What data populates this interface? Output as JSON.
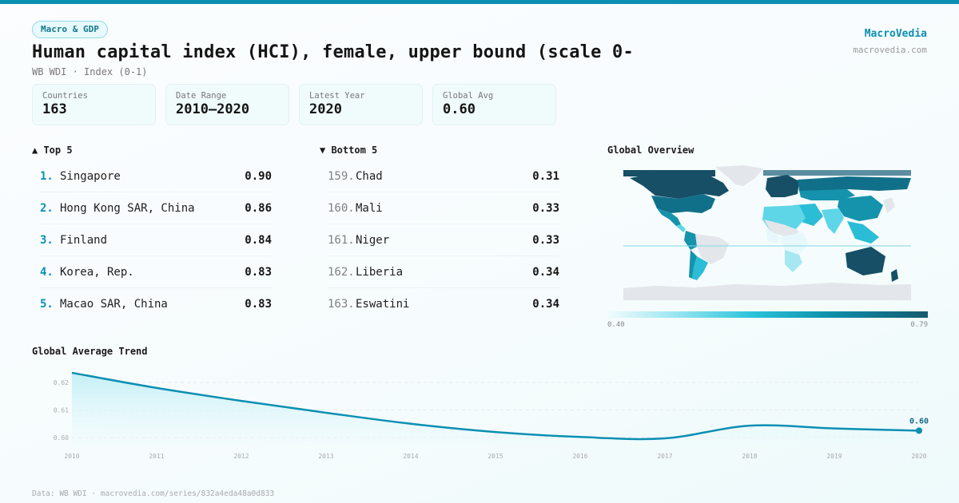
{
  "header": {
    "category_pill": "Macro & GDP",
    "title": "Human capital index (HCI), female, upper bound (scale 0-",
    "subtitle": "WB WDI · Index (0-1)",
    "brand_name": "MacroVedia",
    "brand_url": "macrovedia.com"
  },
  "stats": [
    {
      "label": "Countries",
      "value": "163"
    },
    {
      "label": "Date Range",
      "value": "2010–2020"
    },
    {
      "label": "Latest Year",
      "value": "2020"
    },
    {
      "label": "Global Avg",
      "value": "0.60"
    }
  ],
  "top5": {
    "title": "▲ Top 5",
    "items": [
      {
        "rank": "1.",
        "name": "Singapore",
        "value": "0.90"
      },
      {
        "rank": "2.",
        "name": "Hong Kong SAR, China",
        "value": "0.86"
      },
      {
        "rank": "3.",
        "name": "Finland",
        "value": "0.84"
      },
      {
        "rank": "4.",
        "name": "Korea, Rep.",
        "value": "0.83"
      },
      {
        "rank": "5.",
        "name": "Macao SAR, China",
        "value": "0.83"
      }
    ]
  },
  "bottom5": {
    "title": "▼ Bottom 5",
    "items": [
      {
        "rank": "159.",
        "name": "Chad",
        "value": "0.31"
      },
      {
        "rank": "160.",
        "name": "Mali",
        "value": "0.33"
      },
      {
        "rank": "161.",
        "name": "Niger",
        "value": "0.33"
      },
      {
        "rank": "162.",
        "name": "Liberia",
        "value": "0.34"
      },
      {
        "rank": "163.",
        "name": "Eswatini",
        "value": "0.34"
      }
    ]
  },
  "map": {
    "title": "Global Overview",
    "legend_min": "0.40",
    "legend_max": "0.79",
    "colors": {
      "nodata": "#e3e6ea",
      "lowest": "#e6f8fb",
      "low": "#a5e8f2",
      "mid_low": "#5fd6e8",
      "mid": "#2bbdd6",
      "mid_high": "#1592ac",
      "high": "#117089",
      "highest": "#164f66"
    }
  },
  "trend": {
    "title": "Global Average Trend",
    "end_label": "0.60"
  },
  "chart_data": {
    "type": "line",
    "title": "Global Average Trend",
    "xlabel": "",
    "ylabel": "",
    "x": [
      2010,
      2011,
      2012,
      2013,
      2014,
      2015,
      2016,
      2017,
      2018,
      2019,
      2020
    ],
    "x_tick_labels": [
      "2010",
      "2011",
      "2012",
      "2013",
      "2014",
      "2015",
      "2016",
      "2017",
      "2018",
      "2019",
      "2020"
    ],
    "series": [
      {
        "name": "Global Average",
        "values": [
          0.6235,
          0.618,
          0.6133,
          0.609,
          0.605,
          0.602,
          0.6002,
          0.5997,
          0.6043,
          0.6033,
          0.6025
        ]
      }
    ],
    "y_tick_labels": [
      "0.60",
      "0.61",
      "0.62"
    ],
    "y_ticks": [
      0.6,
      0.61,
      0.62
    ],
    "ylim": [
      0.5965,
      0.625
    ],
    "grid": true,
    "grid_style": "dashed horizontal",
    "area_fill": true,
    "end_annotation": "0.60",
    "line_color": "#0b8fb3"
  },
  "footer": {
    "text": "Data: WB WDI · macrovedia.com/series/832a4eda48a0d833"
  }
}
